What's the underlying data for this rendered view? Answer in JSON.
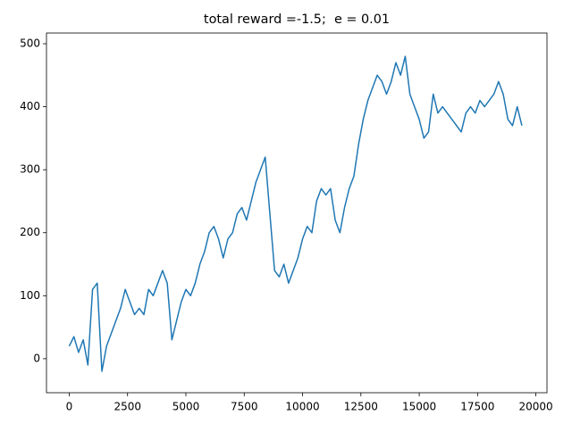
{
  "chart_data": {
    "type": "line",
    "title": "total reward =-1.5;  e = 0.01",
    "x": [
      0,
      200,
      400,
      600,
      800,
      1000,
      1200,
      1400,
      1600,
      1800,
      2000,
      2200,
      2400,
      2600,
      2800,
      3000,
      3200,
      3400,
      3600,
      3800,
      4000,
      4200,
      4400,
      4600,
      4800,
      5000,
      5200,
      5400,
      5600,
      5800,
      6000,
      6200,
      6400,
      6600,
      6800,
      7000,
      7200,
      7400,
      7600,
      7800,
      8000,
      8200,
      8400,
      8600,
      8800,
      9000,
      9200,
      9400,
      9600,
      9800,
      10000,
      10200,
      10400,
      10600,
      10800,
      11000,
      11200,
      11400,
      11600,
      11800,
      12000,
      12200,
      12400,
      12600,
      12800,
      13000,
      13200,
      13400,
      13600,
      13800,
      14000,
      14200,
      14400,
      14600,
      14800,
      15000,
      15200,
      15400,
      15600,
      15800,
      16000,
      16200,
      16400,
      16600,
      16800,
      17000,
      17200,
      17400,
      17600,
      17800,
      18000,
      18200,
      18400,
      18600,
      18800,
      19000,
      19200,
      19400
    ],
    "series": [
      {
        "color": "#1f77b4",
        "values": [
          20,
          35,
          10,
          30,
          -10,
          110,
          120,
          -20,
          20,
          40,
          60,
          80,
          110,
          90,
          70,
          80,
          70,
          110,
          100,
          120,
          140,
          120,
          30,
          60,
          90,
          110,
          100,
          120,
          150,
          170,
          200,
          210,
          190,
          160,
          190,
          200,
          230,
          240,
          220,
          250,
          280,
          300,
          320,
          230,
          140,
          130,
          150,
          120,
          140,
          160,
          190,
          210,
          200,
          250,
          270,
          260,
          270,
          220,
          200,
          240,
          270,
          290,
          340,
          380,
          410,
          430,
          450,
          440,
          420,
          440,
          470,
          450,
          480,
          420,
          400,
          380,
          350,
          360,
          420,
          390,
          400,
          390,
          380,
          370,
          360,
          390,
          400,
          390,
          410,
          400,
          410,
          420,
          440,
          420,
          380,
          370,
          400,
          370
        ]
      }
    ],
    "xlim": [
      -975,
      20475
    ],
    "ylim": [
      -54,
      517
    ],
    "xticks": [
      0,
      2500,
      5000,
      7500,
      10000,
      12500,
      15000,
      17500,
      20000
    ],
    "yticks": [
      0,
      100,
      200,
      300,
      400,
      500
    ],
    "grid": false
  }
}
